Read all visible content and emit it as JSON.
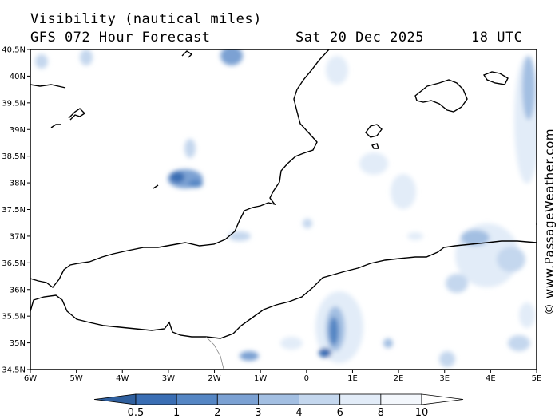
{
  "header": {
    "title": "Visibility (nautical miles)",
    "forecast": "GFS 072 Hour Forecast",
    "date": "Sat 20 Dec 2025",
    "time": "18 UTC"
  },
  "map": {
    "lat_labels": [
      "40.5N",
      "40N",
      "39.5N",
      "39N",
      "38.5N",
      "38N",
      "37.5N",
      "37N",
      "36.5N",
      "36N",
      "35.5N",
      "35N",
      "34.5N"
    ],
    "lon_labels": [
      "6W",
      "5W",
      "4W",
      "3W",
      "2W",
      "1W",
      "0",
      "1E",
      "2E",
      "3E",
      "4E",
      "5E"
    ],
    "lat_range": [
      34.5,
      40.5
    ],
    "lon_range": [
      -6,
      5
    ],
    "land_color": "#ffffff",
    "coast_color": "#000000"
  },
  "colorbar": {
    "labels": [
      "0.5",
      "1",
      "2",
      "3",
      "4",
      "6",
      "8",
      "10"
    ],
    "colors": [
      "#3a6eb4",
      "#5586c4",
      "#7ba1d3",
      "#a3bfe2",
      "#c4d7ee",
      "#e2ecf8",
      "#f3f7fc"
    ]
  },
  "watermark": "© www.PassageWeather.com"
}
